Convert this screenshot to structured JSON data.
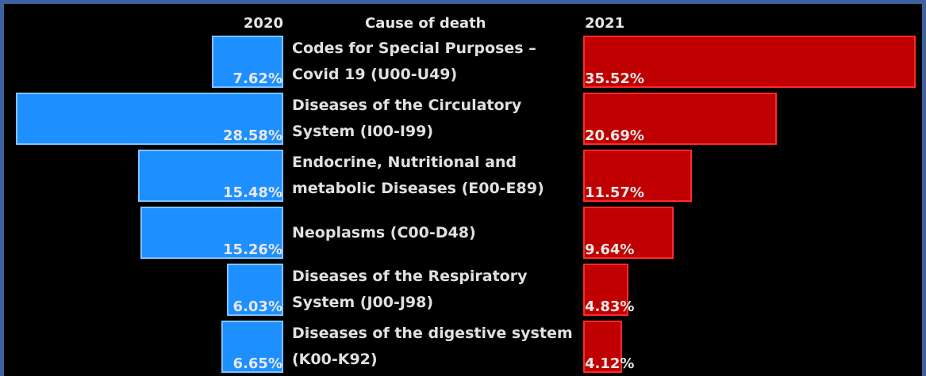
{
  "chart_data": {
    "type": "butterfly",
    "category_label": "Cause of death",
    "categories": [
      "Codes for Special Purposes – Covid 19 (U00-U49)",
      "Diseases of the Circulatory System (I00-I99)",
      "Endocrine, Nutritional and metabolic Diseases (E00-E89)",
      "Neoplasms (C00-D48)",
      "Diseases of the Respiratory System (J00-J98)",
      "Diseases of the digestive system (K00-K92)"
    ],
    "series": [
      {
        "name": "2020",
        "color": "#1e8fff",
        "values": [
          7.62,
          28.58,
          15.48,
          15.26,
          6.03,
          6.65
        ],
        "value_labels": [
          "7.62%",
          "28.58%",
          "15.48%",
          "15.26%",
          "6.03%",
          "6.65%"
        ]
      },
      {
        "name": "2021",
        "color": "#c00000",
        "values": [
          35.52,
          20.69,
          11.57,
          9.64,
          4.83,
          4.12
        ],
        "value_labels": [
          "35.52%",
          "20.69%",
          "11.57%",
          "9.64%",
          "4.83%",
          "4.12%"
        ]
      }
    ]
  }
}
